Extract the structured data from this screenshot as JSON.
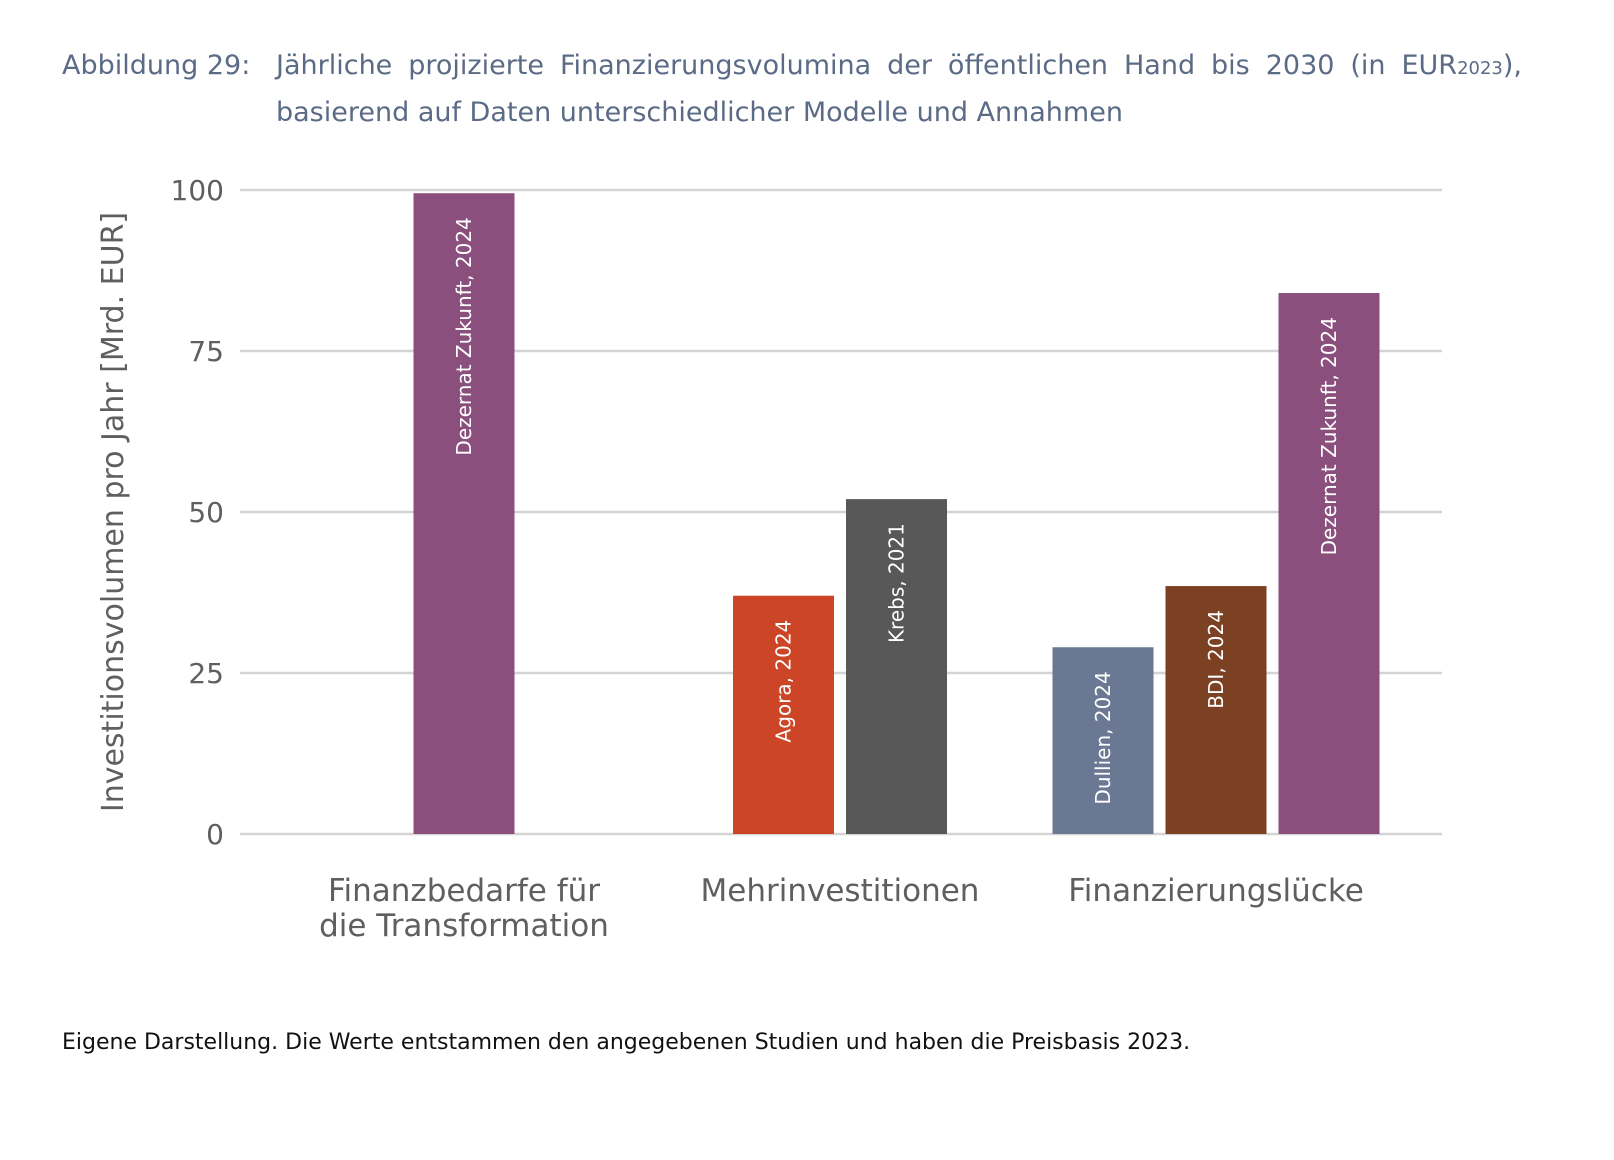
{
  "figure": {
    "label": "Abbildung 29:",
    "title_main": "Jährliche projizierte Finanzierungsvolumina der öffentlichen Hand bis 2030 (in EUR",
    "title_sub": "2023",
    "title_end": "), basierend auf Daten unterschiedlicher Modelle und Annahmen"
  },
  "note": "Eigene Darstellung. Die Werte entstammen den angegebenen Studien und haben die Preisbasis 2023.",
  "chart_data": {
    "type": "bar",
    "ylabel": "Investitionsvolumen pro Jahr [Mrd. EUR]",
    "ylim": [
      0,
      100
    ],
    "yticks": [
      0,
      25,
      50,
      75,
      100
    ],
    "grid": true,
    "categories": [
      {
        "label": [
          "Finanzbedarfe für",
          "die Transformation"
        ]
      },
      {
        "label": [
          "Mehrinvestitionen"
        ]
      },
      {
        "label": [
          "Finanzierungslücke"
        ]
      }
    ],
    "bars": [
      {
        "category": 0,
        "label": "Dezernat Zukunft, 2024",
        "value": 99.5,
        "color": "#8a4f7d"
      },
      {
        "category": 1,
        "label": "Agora, 2024",
        "value": 37,
        "color": "#cc4527"
      },
      {
        "category": 1,
        "label": "Krebs, 2021",
        "value": 52,
        "color": "#585858"
      },
      {
        "category": 2,
        "label": "Dullien, 2024",
        "value": 29,
        "color": "#6a7893"
      },
      {
        "category": 2,
        "label": "BDI, 2024",
        "value": 38.5,
        "color": "#7b4122"
      },
      {
        "category": 2,
        "label": "Dezernat Zukunft, 2024",
        "value": 84,
        "color": "#8a4f7d"
      }
    ],
    "colors": {
      "grid": "#d4d4d4",
      "axis_text": "#5f5f5f",
      "bar_label": "#ffffff"
    }
  }
}
